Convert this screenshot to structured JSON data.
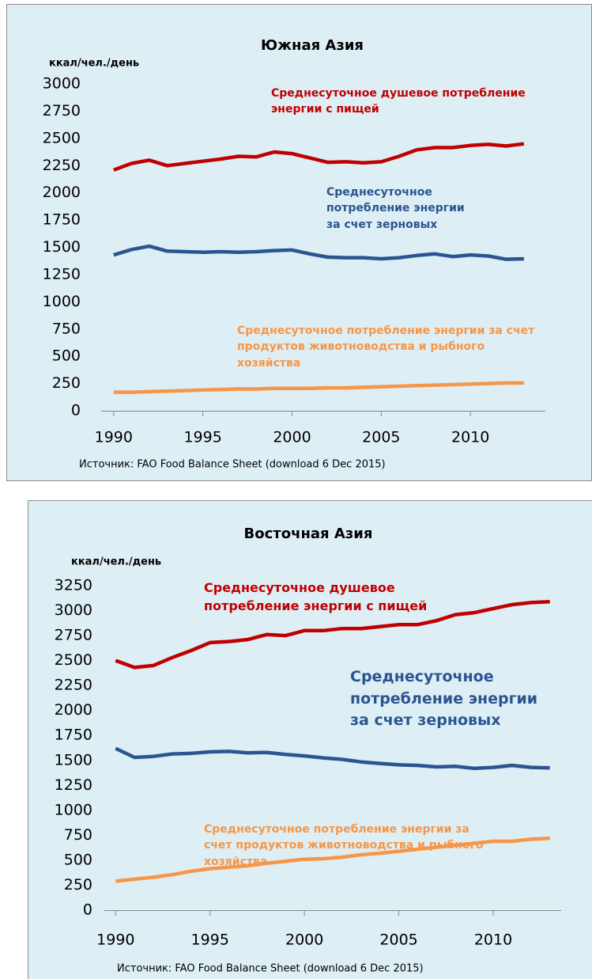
{
  "chart_data": [
    {
      "type": "line",
      "title": "Южная Азия",
      "y_label": "ккал/чел./день",
      "source": "Источник: FAO Food Balance Sheet (download 6 Dec 2015)",
      "x": [
        1990,
        1991,
        1992,
        1993,
        1994,
        1995,
        1996,
        1997,
        1998,
        1999,
        2000,
        2001,
        2002,
        2003,
        2004,
        2005,
        2006,
        2007,
        2008,
        2009,
        2010,
        2011,
        2012,
        2013
      ],
      "xlim": [
        1989.3,
        2014.2
      ],
      "xticks": [
        1990,
        1995,
        2000,
        2005,
        2010
      ],
      "ylim": [
        0,
        3000
      ],
      "yticks": [
        0,
        250,
        500,
        750,
        1000,
        1250,
        1500,
        1750,
        2000,
        2250,
        2500,
        2750,
        3000
      ],
      "grid": false,
      "series": [
        {
          "name": "Среднесуточное душевое потребление энергии с пищей",
          "color": "#c00000",
          "values": [
            2210,
            2270,
            2300,
            2250,
            2270,
            2290,
            2310,
            2335,
            2330,
            2375,
            2360,
            2320,
            2280,
            2285,
            2275,
            2285,
            2335,
            2395,
            2415,
            2415,
            2435,
            2445,
            2430,
            2450
          ]
        },
        {
          "name": "Среднесуточное потребление энергии за счет зерновых",
          "color": "#2a5590",
          "values": [
            1430,
            1480,
            1510,
            1465,
            1460,
            1455,
            1460,
            1455,
            1460,
            1470,
            1475,
            1440,
            1410,
            1405,
            1405,
            1395,
            1405,
            1425,
            1440,
            1415,
            1430,
            1420,
            1390,
            1395
          ]
        },
        {
          "name": "Среднесуточное потребление энергии за счет продуктов животноводства и рыбного хозяйства",
          "color": "#f79646",
          "values": [
            170,
            170,
            175,
            180,
            185,
            190,
            195,
            200,
            200,
            205,
            205,
            205,
            210,
            210,
            215,
            220,
            225,
            230,
            235,
            240,
            245,
            250,
            255,
            255
          ]
        }
      ]
    },
    {
      "type": "line",
      "title": "Восточная Азия",
      "y_label": "ккал/чел./день",
      "source": "Источник: FAO Food Balance Sheet (download 6 Dec 2015)",
      "x": [
        1990,
        1991,
        1992,
        1993,
        1994,
        1995,
        1996,
        1997,
        1998,
        1999,
        2000,
        2001,
        2002,
        2003,
        2004,
        2005,
        2006,
        2007,
        2008,
        2009,
        2010,
        2011,
        2012,
        2013
      ],
      "xlim": [
        1989.4,
        2013.6
      ],
      "xticks": [
        1990,
        1995,
        2000,
        2005,
        2010
      ],
      "ylim": [
        0,
        3250
      ],
      "yticks": [
        0,
        250,
        500,
        750,
        1000,
        1250,
        1500,
        1750,
        2000,
        2250,
        2500,
        2750,
        3000,
        3250
      ],
      "grid": false,
      "series": [
        {
          "name": "Среднесуточное душевое потребление энергии с пищей",
          "color": "#c00000",
          "values": [
            2500,
            2430,
            2450,
            2530,
            2600,
            2680,
            2690,
            2710,
            2760,
            2750,
            2800,
            2800,
            2820,
            2820,
            2840,
            2860,
            2860,
            2900,
            2960,
            2980,
            3020,
            3060,
            3080,
            3090
          ]
        },
        {
          "name": "Среднесуточное потребление энергии за счет зерновых",
          "color": "#2a5590",
          "values": [
            1620,
            1530,
            1540,
            1565,
            1570,
            1585,
            1590,
            1575,
            1580,
            1560,
            1545,
            1525,
            1510,
            1485,
            1470,
            1455,
            1450,
            1435,
            1440,
            1420,
            1430,
            1450,
            1430,
            1425
          ]
        },
        {
          "name": "Среднесуточное потребление энергии за счет продуктов животноводства и рыбного хозяйства",
          "color": "#f79646",
          "values": [
            290,
            310,
            330,
            355,
            390,
            415,
            430,
            445,
            470,
            490,
            510,
            515,
            530,
            555,
            570,
            590,
            610,
            630,
            650,
            670,
            690,
            690,
            710,
            720
          ]
        }
      ]
    }
  ]
}
